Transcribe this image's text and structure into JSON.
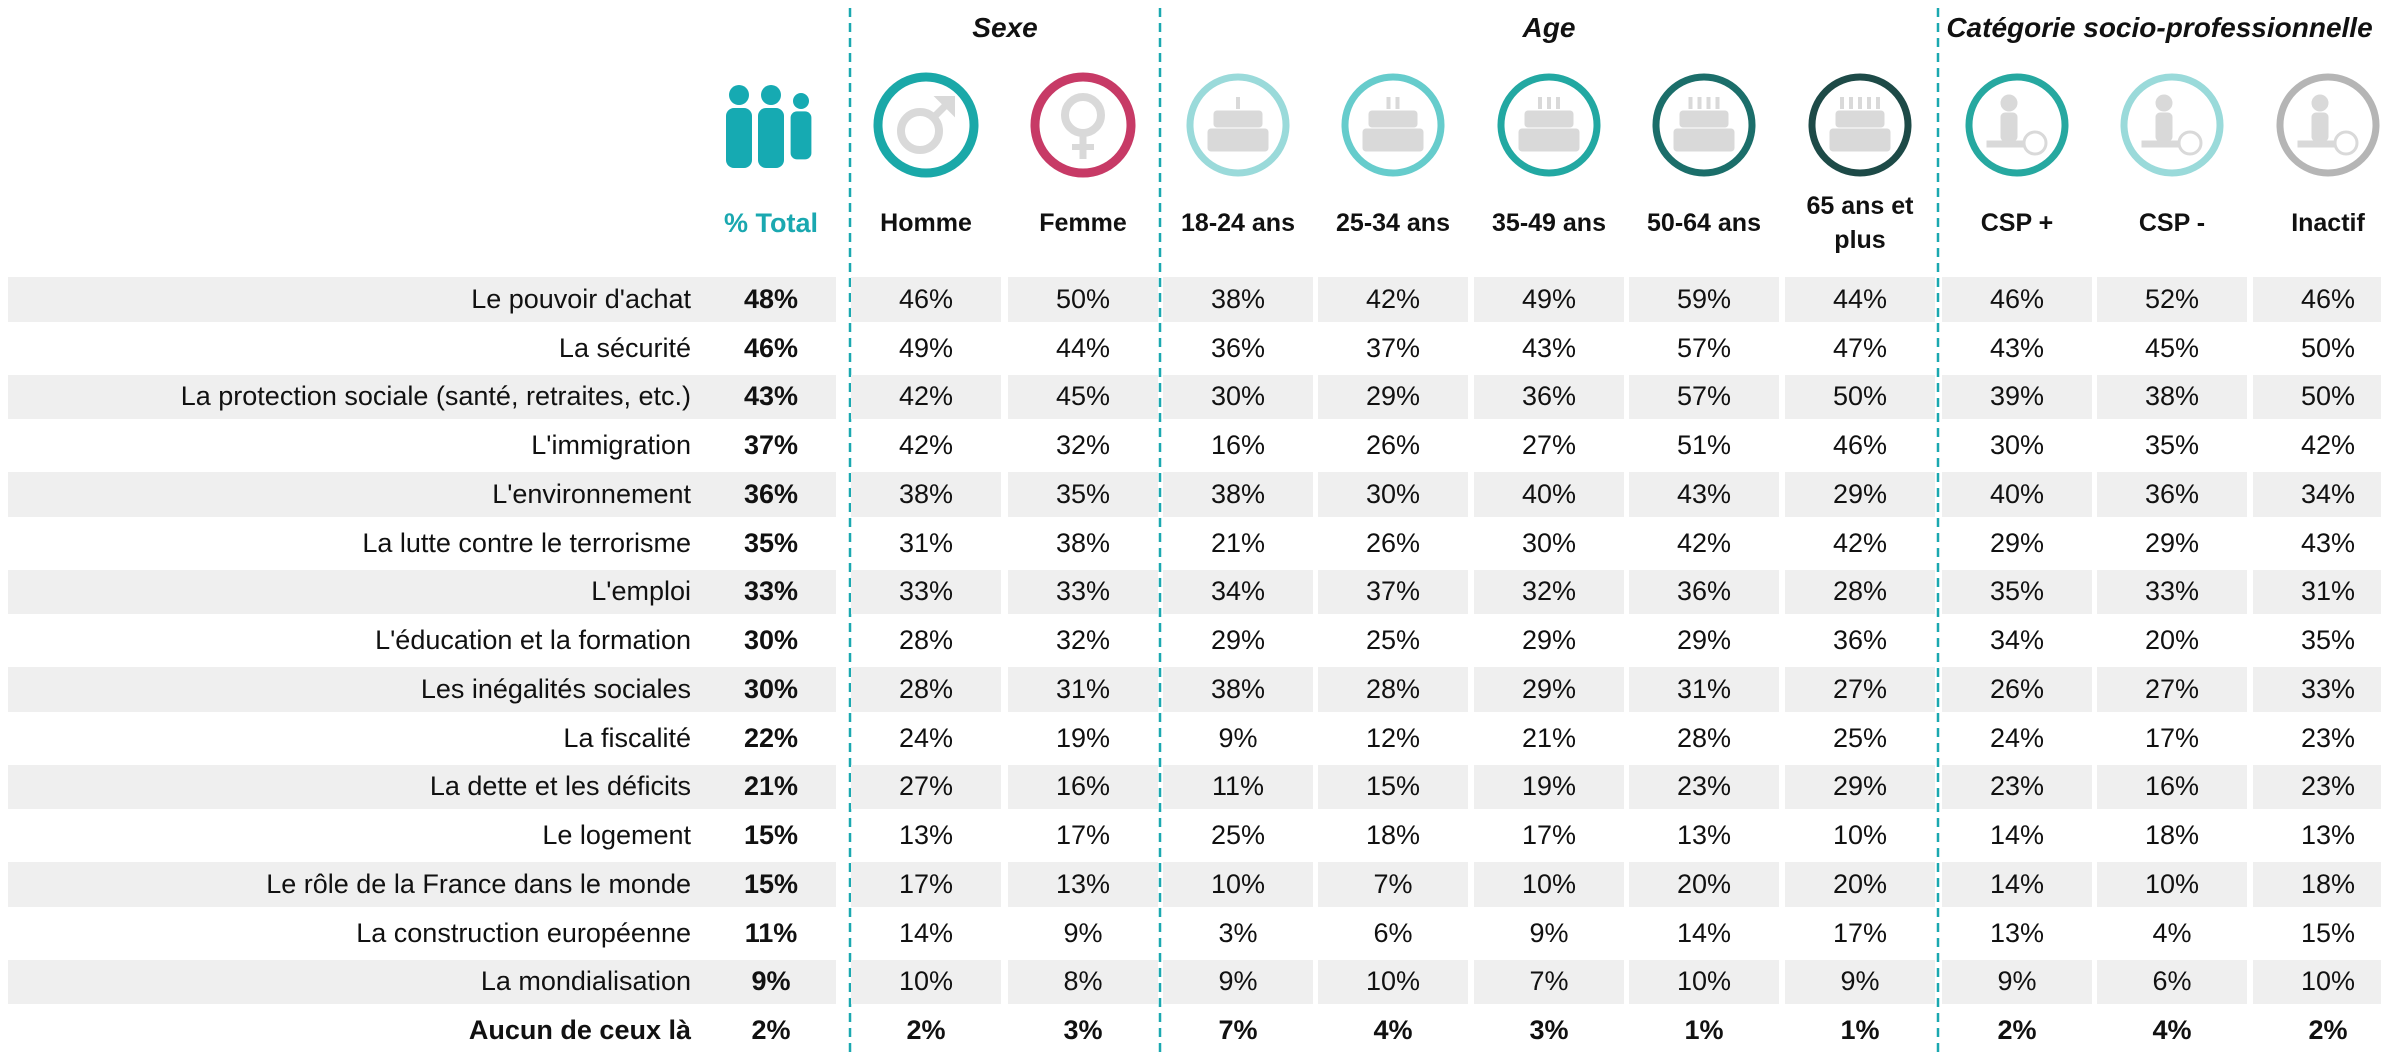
{
  "table": {
    "groups": [
      "Sexe",
      "Age",
      "Catégorie socio-professionnelle"
    ],
    "columns": [
      "% Total",
      "Homme",
      "Femme",
      "18-24 ans",
      "25-34 ans",
      "35-49 ans",
      "50-64 ans",
      "65 ans et plus",
      "CSP +",
      "CSP -",
      "Inactif"
    ],
    "rows": [
      {
        "label": "Le pouvoir d'achat",
        "cells": [
          "48%",
          "46%",
          "50%",
          "38%",
          "42%",
          "49%",
          "59%",
          "44%",
          "46%",
          "52%",
          "46%"
        ]
      },
      {
        "label": "La sécurité",
        "cells": [
          "46%",
          "49%",
          "44%",
          "36%",
          "37%",
          "43%",
          "57%",
          "47%",
          "43%",
          "45%",
          "50%"
        ]
      },
      {
        "label": "La protection sociale (santé, retraites, etc.)",
        "cells": [
          "43%",
          "42%",
          "45%",
          "30%",
          "29%",
          "36%",
          "57%",
          "50%",
          "39%",
          "38%",
          "50%"
        ]
      },
      {
        "label": "L'immigration",
        "cells": [
          "37%",
          "42%",
          "32%",
          "16%",
          "26%",
          "27%",
          "51%",
          "46%",
          "30%",
          "35%",
          "42%"
        ]
      },
      {
        "label": "L'environnement",
        "cells": [
          "36%",
          "38%",
          "35%",
          "38%",
          "30%",
          "40%",
          "43%",
          "29%",
          "40%",
          "36%",
          "34%"
        ]
      },
      {
        "label": "La lutte contre le terrorisme",
        "cells": [
          "35%",
          "31%",
          "38%",
          "21%",
          "26%",
          "30%",
          "42%",
          "42%",
          "29%",
          "29%",
          "43%"
        ]
      },
      {
        "label": "L'emploi",
        "cells": [
          "33%",
          "33%",
          "33%",
          "34%",
          "37%",
          "32%",
          "36%",
          "28%",
          "35%",
          "33%",
          "31%"
        ]
      },
      {
        "label": "L'éducation et la formation",
        "cells": [
          "30%",
          "28%",
          "32%",
          "29%",
          "25%",
          "29%",
          "29%",
          "36%",
          "34%",
          "20%",
          "35%"
        ]
      },
      {
        "label": "Les inégalités sociales",
        "cells": [
          "30%",
          "28%",
          "31%",
          "38%",
          "28%",
          "29%",
          "31%",
          "27%",
          "26%",
          "27%",
          "33%"
        ]
      },
      {
        "label": "La fiscalité",
        "cells": [
          "22%",
          "24%",
          "19%",
          "9%",
          "12%",
          "21%",
          "28%",
          "25%",
          "24%",
          "17%",
          "23%"
        ]
      },
      {
        "label": "La dette et les déficits",
        "cells": [
          "21%",
          "27%",
          "16%",
          "11%",
          "15%",
          "19%",
          "23%",
          "29%",
          "23%",
          "16%",
          "23%"
        ]
      },
      {
        "label": "Le logement",
        "cells": [
          "15%",
          "13%",
          "17%",
          "25%",
          "18%",
          "17%",
          "13%",
          "10%",
          "14%",
          "18%",
          "13%"
        ]
      },
      {
        "label": "Le rôle de la France dans le monde",
        "cells": [
          "15%",
          "17%",
          "13%",
          "10%",
          "7%",
          "10%",
          "20%",
          "20%",
          "14%",
          "10%",
          "18%"
        ]
      },
      {
        "label": "La construction européenne",
        "cells": [
          "11%",
          "14%",
          "9%",
          "3%",
          "6%",
          "9%",
          "14%",
          "17%",
          "13%",
          "4%",
          "15%"
        ]
      },
      {
        "label": "La mondialisation",
        "cells": [
          "9%",
          "10%",
          "8%",
          "9%",
          "10%",
          "7%",
          "10%",
          "9%",
          "9%",
          "6%",
          "10%"
        ]
      },
      {
        "label": "Aucun de ceux là",
        "cells": [
          "2%",
          "2%",
          "3%",
          "7%",
          "4%",
          "3%",
          "1%",
          "1%",
          "2%",
          "4%",
          "2%"
        ]
      }
    ]
  }
}
